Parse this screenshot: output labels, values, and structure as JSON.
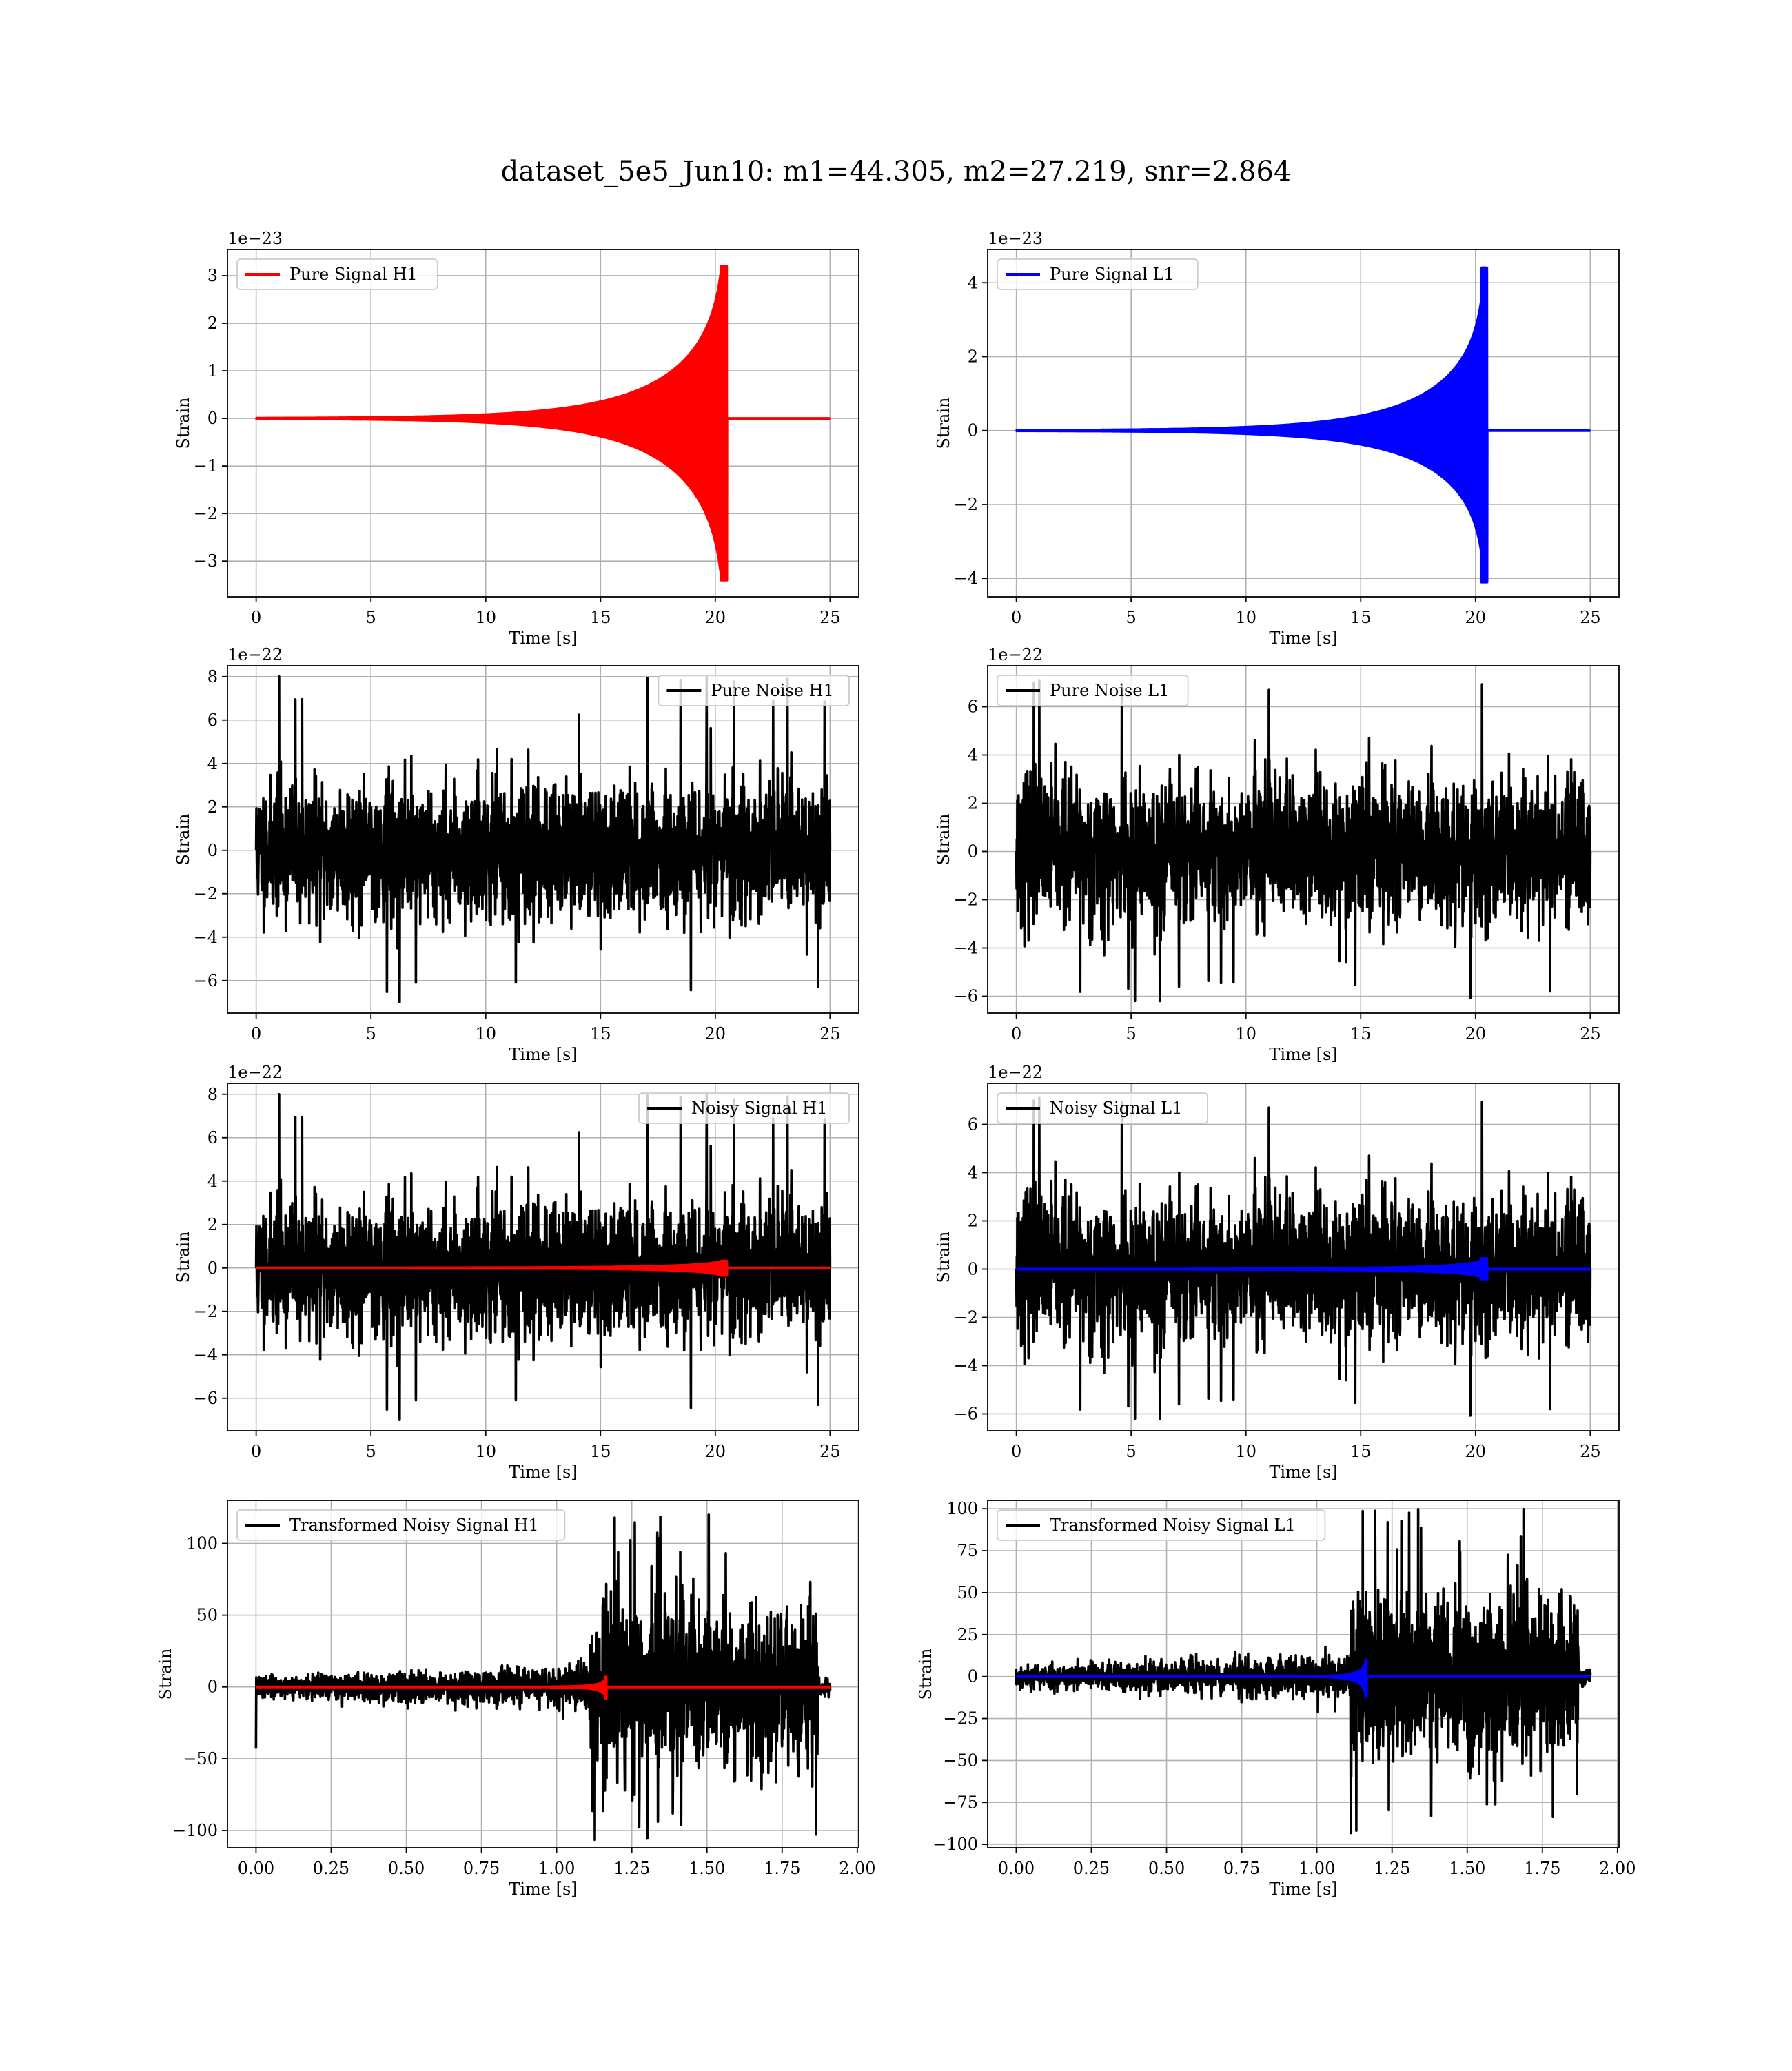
{
  "figure": {
    "title": "dataset_5e5_Jun10: m1=44.305, m2=27.219, snr=2.864"
  },
  "chart_data": [
    {
      "id": "pure-signal-h1",
      "type": "line",
      "xlabel": "Time [s]",
      "ylabel": "Strain",
      "offset_text": "1e−23",
      "xlim": [
        -1.25,
        26.25
      ],
      "ylim": [
        -3.75,
        3.55
      ],
      "xticks": [
        0,
        5,
        10,
        15,
        20,
        25
      ],
      "xtick_labels": [
        "0",
        "5",
        "10",
        "15",
        "20",
        "25"
      ],
      "yticks": [
        -3,
        -2,
        -1,
        0,
        1,
        2,
        3
      ],
      "ytick_labels": [
        "−3",
        "−2",
        "−1",
        "0",
        "1",
        "2",
        "3"
      ],
      "grid": true,
      "legend_position": "upper-left",
      "series": [
        {
          "name": "Pure Signal H1",
          "color": "#ff0000",
          "kind": "chirp",
          "t_end": 25,
          "t_merge": 20.5,
          "peak_pos": 3.2,
          "peak_neg": -3.4,
          "plateau": 1.1
        }
      ]
    },
    {
      "id": "pure-signal-l1",
      "type": "line",
      "xlabel": "Time [s]",
      "ylabel": "Strain",
      "offset_text": "1e−23",
      "xlim": [
        -1.25,
        26.25
      ],
      "ylim": [
        -4.5,
        4.9
      ],
      "xticks": [
        0,
        5,
        10,
        15,
        20,
        25
      ],
      "xtick_labels": [
        "0",
        "5",
        "10",
        "15",
        "20",
        "25"
      ],
      "yticks": [
        -4,
        -2,
        0,
        2,
        4
      ],
      "ytick_labels": [
        "−4",
        "−2",
        "0",
        "2",
        "4"
      ],
      "grid": true,
      "legend_position": "upper-left",
      "series": [
        {
          "name": "Pure Signal L1",
          "color": "#0000ff",
          "kind": "chirp",
          "t_end": 25,
          "t_merge": 20.5,
          "peak_pos": 4.4,
          "peak_neg": -4.1,
          "plateau": 1.25
        }
      ]
    },
    {
      "id": "pure-noise-h1",
      "type": "line",
      "xlabel": "Time [s]",
      "ylabel": "Strain",
      "offset_text": "1e−22",
      "xlim": [
        -1.25,
        26.25
      ],
      "ylim": [
        -7.5,
        8.5
      ],
      "xticks": [
        0,
        5,
        10,
        15,
        20,
        25
      ],
      "xtick_labels": [
        "0",
        "5",
        "10",
        "15",
        "20",
        "25"
      ],
      "yticks": [
        -6,
        -4,
        -2,
        0,
        2,
        4,
        6,
        8
      ],
      "ytick_labels": [
        "−6",
        "−4",
        "−2",
        "0",
        "2",
        "4",
        "6",
        "8"
      ],
      "grid": true,
      "legend_position": "upper-right",
      "series": [
        {
          "name": "Pure Noise H1",
          "color": "#000000",
          "kind": "noise",
          "t_end": 25,
          "sigma": 1.5,
          "env_max": 8.0,
          "env_min": -7.0,
          "seed": 11
        }
      ]
    },
    {
      "id": "pure-noise-l1",
      "type": "line",
      "xlabel": "Time [s]",
      "ylabel": "Strain",
      "offset_text": "1e−22",
      "xlim": [
        -1.25,
        26.25
      ],
      "ylim": [
        -6.7,
        7.7
      ],
      "xticks": [
        0,
        5,
        10,
        15,
        20,
        25
      ],
      "xtick_labels": [
        "0",
        "5",
        "10",
        "15",
        "20",
        "25"
      ],
      "yticks": [
        -6,
        -4,
        -2,
        0,
        2,
        4,
        6
      ],
      "ytick_labels": [
        "−6",
        "−4",
        "−2",
        "0",
        "2",
        "4",
        "6"
      ],
      "grid": true,
      "legend_position": "upper-left",
      "series": [
        {
          "name": "Pure Noise L1",
          "color": "#000000",
          "kind": "noise",
          "t_end": 25,
          "sigma": 1.45,
          "env_max": 7.1,
          "env_min": -6.2,
          "seed": 23
        }
      ]
    },
    {
      "id": "noisy-signal-h1",
      "type": "line",
      "xlabel": "Time [s]",
      "ylabel": "Strain",
      "offset_text": "1e−22",
      "xlim": [
        -1.25,
        26.25
      ],
      "ylim": [
        -7.5,
        8.5
      ],
      "xticks": [
        0,
        5,
        10,
        15,
        20,
        25
      ],
      "xtick_labels": [
        "0",
        "5",
        "10",
        "15",
        "20",
        "25"
      ],
      "yticks": [
        -6,
        -4,
        -2,
        0,
        2,
        4,
        6,
        8
      ],
      "ytick_labels": [
        "−6",
        "−4",
        "−2",
        "0",
        "2",
        "4",
        "6",
        "8"
      ],
      "grid": true,
      "legend_position": "upper-right",
      "series": [
        {
          "name": "Noisy Signal H1",
          "color": "#000000",
          "kind": "noise",
          "t_end": 25,
          "sigma": 1.5,
          "env_max": 8.0,
          "env_min": -7.0,
          "seed": 11
        },
        {
          "name": "",
          "color": "#ff0000",
          "kind": "chirp",
          "t_end": 25,
          "t_merge": 20.5,
          "peak_pos": 0.32,
          "peak_neg": -0.34,
          "plateau": 0.11
        }
      ]
    },
    {
      "id": "noisy-signal-l1",
      "type": "line",
      "xlabel": "Time [s]",
      "ylabel": "Strain",
      "offset_text": "1e−22",
      "xlim": [
        -1.25,
        26.25
      ],
      "ylim": [
        -6.7,
        7.7
      ],
      "xticks": [
        0,
        5,
        10,
        15,
        20,
        25
      ],
      "xtick_labels": [
        "0",
        "5",
        "10",
        "15",
        "20",
        "25"
      ],
      "yticks": [
        -6,
        -4,
        -2,
        0,
        2,
        4,
        6
      ],
      "ytick_labels": [
        "−6",
        "−4",
        "−2",
        "0",
        "2",
        "4",
        "6"
      ],
      "grid": true,
      "legend_position": "upper-left",
      "series": [
        {
          "name": "Noisy Signal L1",
          "color": "#000000",
          "kind": "noise",
          "t_end": 25,
          "sigma": 1.45,
          "env_max": 7.1,
          "env_min": -6.2,
          "seed": 23
        },
        {
          "name": "",
          "color": "#0000ff",
          "kind": "chirp",
          "t_end": 25,
          "t_merge": 20.5,
          "peak_pos": 0.44,
          "peak_neg": -0.41,
          "plateau": 0.125
        }
      ]
    },
    {
      "id": "transformed-noisy-signal-h1",
      "type": "line",
      "xlabel": "Time [s]",
      "ylabel": "Strain",
      "offset_text": "",
      "xlim": [
        -0.095,
        2.005
      ],
      "ylim": [
        -112,
        130
      ],
      "xticks": [
        0,
        0.25,
        0.5,
        0.75,
        1.0,
        1.25,
        1.5,
        1.75,
        2.0
      ],
      "xtick_labels": [
        "0.00",
        "0.25",
        "0.50",
        "0.75",
        "1.00",
        "1.25",
        "1.50",
        "1.75",
        "2.00"
      ],
      "yticks": [
        -100,
        -50,
        0,
        50,
        100
      ],
      "ytick_labels": [
        "−100",
        "−50",
        "0",
        "50",
        "100"
      ],
      "grid": true,
      "legend_position": "upper-left",
      "series": [
        {
          "name": "Transformed Noisy Signal H1",
          "color": "#000000",
          "kind": "whitened",
          "t_end": 1.91,
          "t_jump": 1.11,
          "t_stop": 1.87,
          "sigma_low": 3.5,
          "sigma_high": 28,
          "env_max": 122,
          "env_min": -107,
          "start_spike": -43,
          "seed": 37
        },
        {
          "name": "",
          "color": "#ff0000",
          "kind": "chirp",
          "t_end": 1.91,
          "t_merge": 1.165,
          "t_start": 0.9,
          "peak_pos": 7,
          "peak_neg": -8,
          "plateau": 2
        }
      ]
    },
    {
      "id": "transformed-noisy-signal-l1",
      "type": "line",
      "xlabel": "Time [s]",
      "ylabel": "Strain",
      "offset_text": "",
      "xlim": [
        -0.095,
        2.005
      ],
      "ylim": [
        -102,
        105
      ],
      "xticks": [
        0,
        0.25,
        0.5,
        0.75,
        1.0,
        1.25,
        1.5,
        1.75,
        2.0
      ],
      "xtick_labels": [
        "0.00",
        "0.25",
        "0.50",
        "0.75",
        "1.00",
        "1.25",
        "1.50",
        "1.75",
        "2.00"
      ],
      "yticks": [
        -100,
        -75,
        -50,
        -25,
        0,
        25,
        50,
        75,
        100
      ],
      "ytick_labels": [
        "−100",
        "−75",
        "−50",
        "−25",
        "0",
        "25",
        "50",
        "75",
        "100"
      ],
      "grid": true,
      "legend_position": "upper-left",
      "series": [
        {
          "name": "Transformed Noisy Signal L1",
          "color": "#000000",
          "kind": "whitened",
          "t_end": 1.91,
          "t_jump": 1.11,
          "t_stop": 1.87,
          "sigma_low": 3.2,
          "sigma_high": 24,
          "env_max": 100,
          "env_min": -96,
          "start_spike": 0,
          "seed": 53
        },
        {
          "name": "",
          "color": "#0000ff",
          "kind": "chirp",
          "t_end": 1.91,
          "t_merge": 1.165,
          "t_start": 0.9,
          "peak_pos": 10,
          "peak_neg": -12,
          "plateau": 3
        }
      ]
    }
  ]
}
